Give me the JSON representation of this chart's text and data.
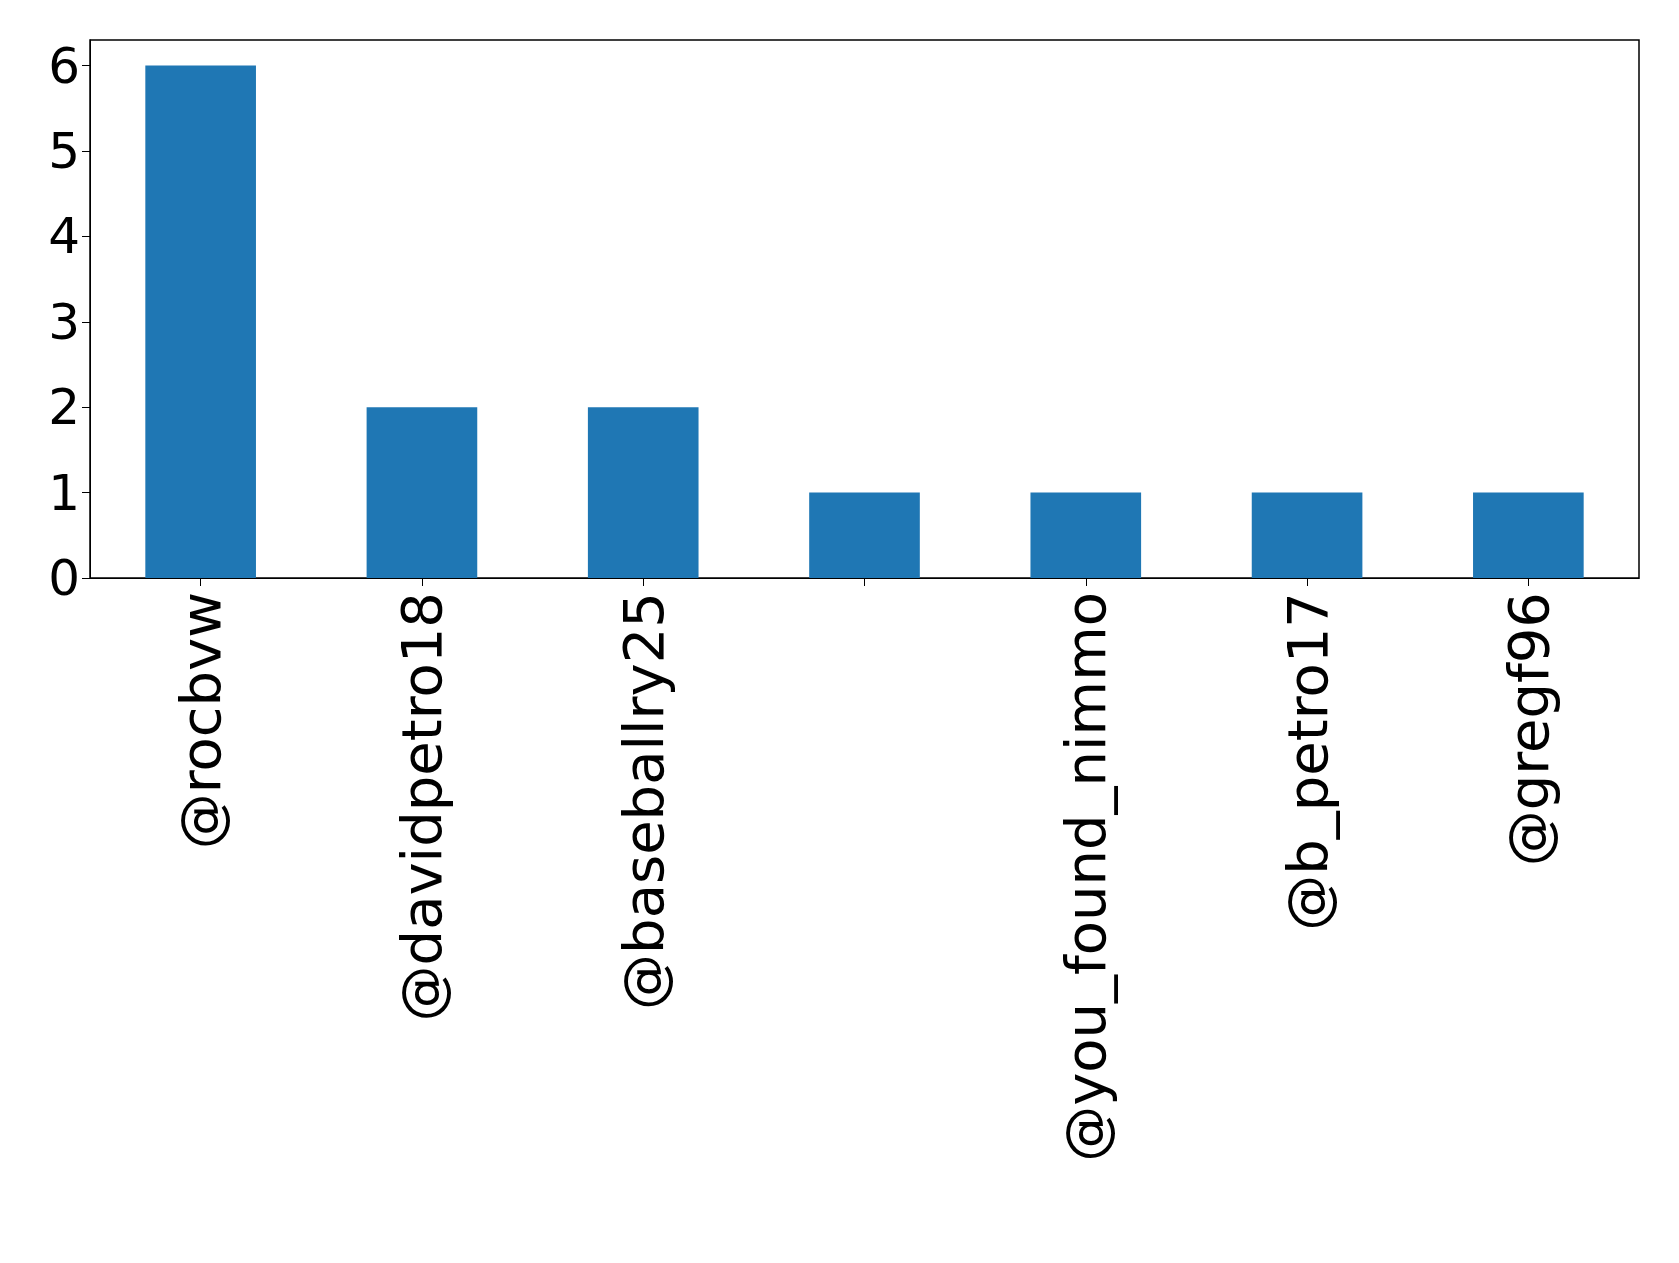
{
  "chart_data": {
    "type": "bar",
    "categories": [
      "@rocbvw",
      "@davidpetro18",
      "@baseballry25",
      null,
      "@you_found_nimmo",
      "@b_petro17",
      "@gregf96"
    ],
    "values": [
      6,
      2,
      2,
      1,
      1,
      1,
      1
    ],
    "color": "#1f77b4",
    "ylim": [
      0,
      6.3
    ],
    "yticks": [
      0,
      1,
      2,
      3,
      4,
      5,
      6
    ],
    "grid": false
  }
}
